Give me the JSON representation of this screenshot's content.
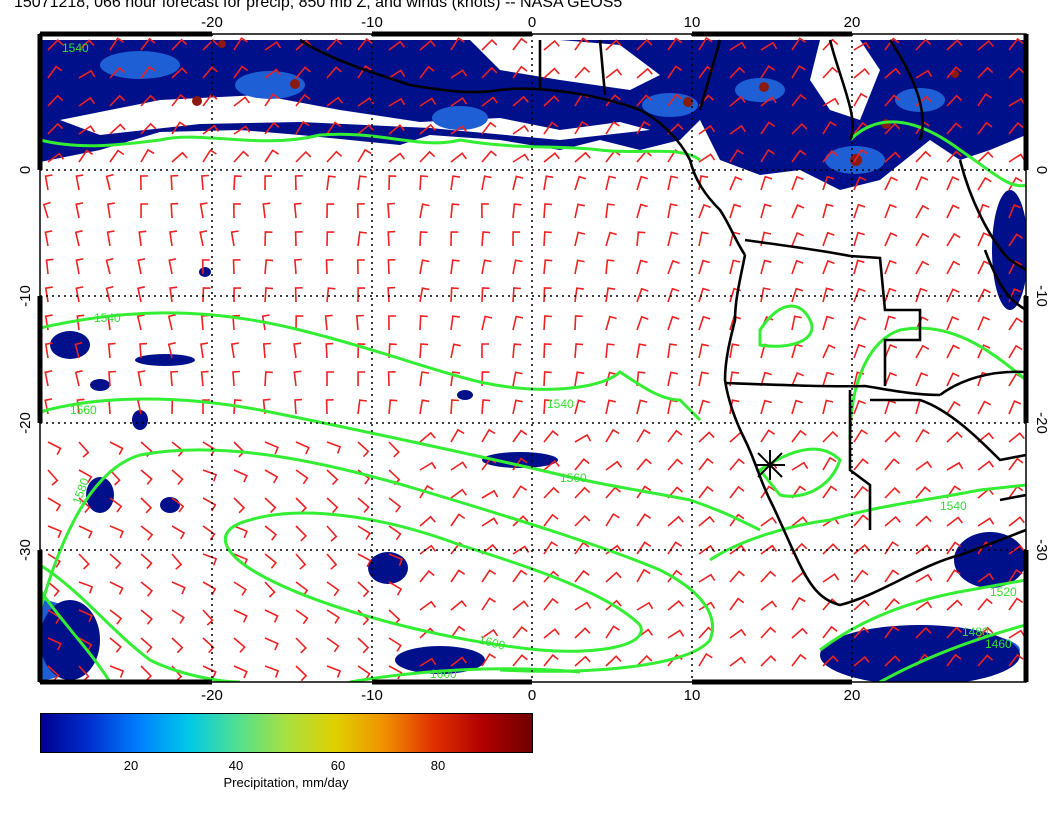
{
  "title": "15071218, 066 hour forecast for precip, 850 mb Z, and winds (knots) -- NASA GEOS5",
  "map": {
    "lon_ticks": [
      "-20",
      "-10",
      "0",
      "10",
      "20"
    ],
    "lat_ticks": [
      "0",
      "-10",
      "-20",
      "-30"
    ],
    "contour_labels": [
      "1540",
      "1560",
      "1580",
      "1600",
      "1540",
      "1560",
      "1540",
      "1520",
      "1480",
      "1460",
      "1540",
      "1600"
    ],
    "colors": {
      "contour": "#33ee33",
      "barb": "#ee2020",
      "coast": "#000000",
      "precip_low": "#00108a",
      "precip_mid": "#1e5fd6",
      "precip_high": "#8a1a10"
    }
  },
  "colorbar": {
    "ticks": [
      "20",
      "40",
      "60",
      "80"
    ],
    "label": "Precipitation, mm/day",
    "colors": [
      "#00008f",
      "#0030d0",
      "#0080ff",
      "#00c8e8",
      "#50e090",
      "#a8e040",
      "#e0d000",
      "#f09000",
      "#e03000",
      "#b00000",
      "#700000"
    ]
  }
}
